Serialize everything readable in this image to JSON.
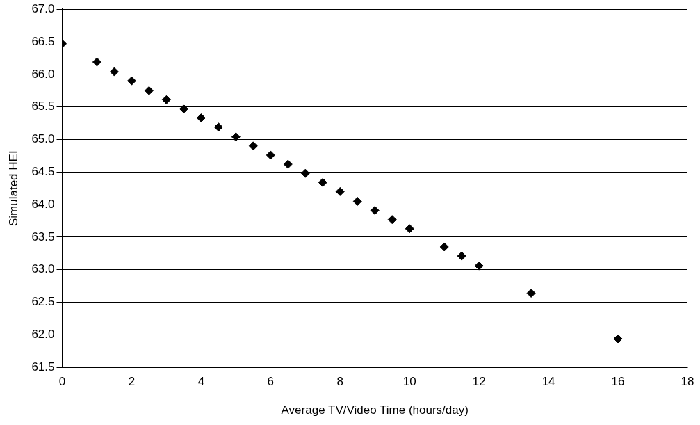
{
  "chart_data": {
    "type": "scatter",
    "xlabel": "Average TV/Video Time (hours/day)",
    "ylabel": "Simulated HEI",
    "x": [
      0,
      1,
      1.5,
      2,
      2.5,
      3,
      3.5,
      4,
      4.5,
      5,
      5.5,
      6,
      6.5,
      7,
      7.5,
      8,
      8.5,
      9,
      9.5,
      10,
      11,
      11.5,
      12,
      13.5,
      16
    ],
    "series": [
      {
        "color": "#000000",
        "values": [
          66.47,
          66.19,
          66.04,
          65.9,
          65.75,
          65.61,
          65.47,
          65.33,
          65.19,
          65.04,
          64.9,
          64.76,
          64.62,
          64.48,
          64.34,
          64.2,
          64.05,
          63.91,
          63.77,
          63.63,
          63.35,
          63.21,
          63.06,
          62.64,
          61.94
        ]
      }
    ],
    "xlim": [
      0,
      18
    ],
    "xticks": [
      0,
      2,
      4,
      6,
      8,
      10,
      12,
      14,
      16,
      18
    ],
    "ylim": [
      61.5,
      67
    ],
    "yticks": [
      {
        "value": 61.5,
        "label": "61.5"
      },
      {
        "value": 62,
        "label": "62.0"
      },
      {
        "value": 62.5,
        "label": "62.5"
      },
      {
        "value": 63,
        "label": "63.0"
      },
      {
        "value": 63.5,
        "label": "63.5"
      },
      {
        "value": 64,
        "label": "64.0"
      },
      {
        "value": 64.5,
        "label": "64.5"
      },
      {
        "value": 65,
        "label": "65.0"
      },
      {
        "value": 65.5,
        "label": "65.5"
      },
      {
        "value": 66,
        "label": "66.0"
      },
      {
        "value": 66.5,
        "label": "66.5"
      },
      {
        "value": 67,
        "label": "67.0"
      }
    ],
    "grid": "y",
    "legend": false,
    "marker": "diamond"
  }
}
